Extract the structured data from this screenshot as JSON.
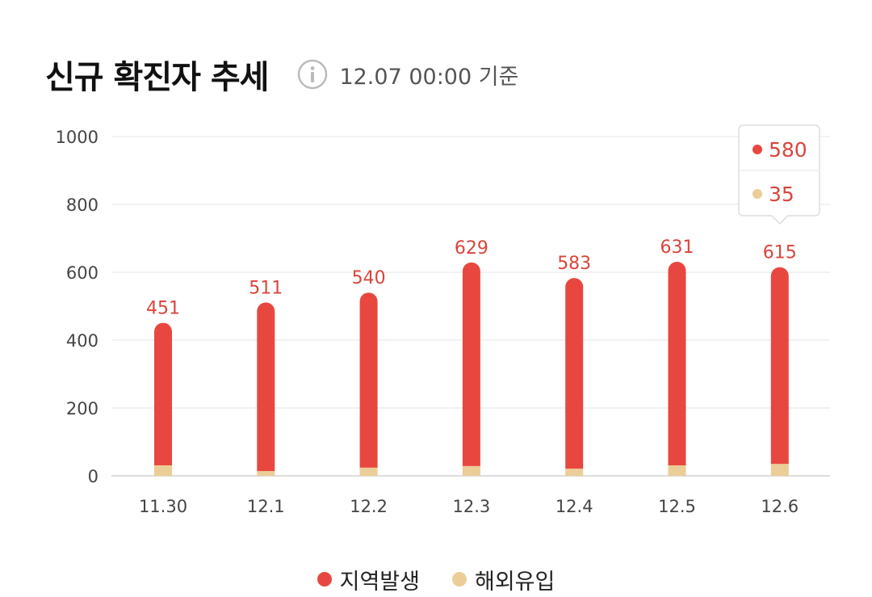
{
  "header": {
    "title": "신규 확진자 추세",
    "info_icon": "info-icon",
    "timestamp": "12.07 00:00 기준"
  },
  "colors": {
    "local": "#e8473f",
    "overseas": "#ebcd97",
    "grid": "#eeeeee",
    "axis_text": "#444444",
    "label_text": "#d9453c"
  },
  "chart_data": {
    "type": "bar",
    "stacked": true,
    "categories": [
      "11.30",
      "12.1",
      "12.2",
      "12.3",
      "12.4",
      "12.5",
      "12.6"
    ],
    "series": [
      {
        "name": "지역발생",
        "values": [
          420,
          497,
          516,
          600,
          562,
          600,
          580
        ]
      },
      {
        "name": "해외유입",
        "values": [
          31,
          14,
          24,
          29,
          21,
          31,
          35
        ]
      }
    ],
    "totals": [
      451,
      511,
      540,
      629,
      583,
      631,
      615
    ],
    "ylim": [
      0,
      1000
    ],
    "yticks": [
      0,
      200,
      400,
      600,
      800,
      1000
    ],
    "grid": true,
    "legend": "bottom-center",
    "tooltip": {
      "category": "12.6",
      "local": "580",
      "overseas": "35"
    }
  }
}
